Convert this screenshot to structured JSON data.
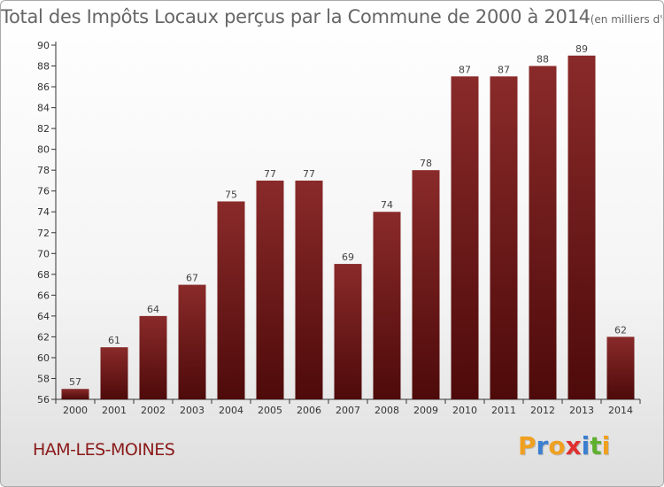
{
  "chart_data": {
    "type": "bar",
    "title": "Total des Impôts Locaux perçus par la Commune de 2000 à 2014",
    "unit": "(en milliers d'€)",
    "categories": [
      "2000",
      "2001",
      "2002",
      "2003",
      "2004",
      "2005",
      "2006",
      "2007",
      "2008",
      "2009",
      "2010",
      "2011",
      "2012",
      "2013",
      "2014"
    ],
    "values": [
      57,
      61,
      64,
      67,
      75,
      77,
      77,
      69,
      74,
      78,
      87,
      87,
      88,
      89,
      62
    ],
    "ylim": [
      56,
      90
    ],
    "yticks": [
      56,
      58,
      60,
      62,
      64,
      66,
      68,
      70,
      72,
      74,
      76,
      78,
      80,
      82,
      84,
      86,
      88,
      90
    ],
    "xlabel": "",
    "ylabel": "",
    "grid": false
  },
  "commune_name": "HAM-LES-MOINES",
  "logo": {
    "letters": [
      "P",
      "r",
      "o",
      "x",
      "i",
      "t",
      "i"
    ],
    "colors": [
      "#f0a020",
      "#3a7fd0",
      "#f0a020",
      "#e03030",
      "#3a7fd0",
      "#60b030",
      "#f0a020"
    ]
  },
  "colors": {
    "bar_dark": "#4e0a0a",
    "bar_light": "#8a2a2a",
    "text_red": "#8b1a1a"
  }
}
